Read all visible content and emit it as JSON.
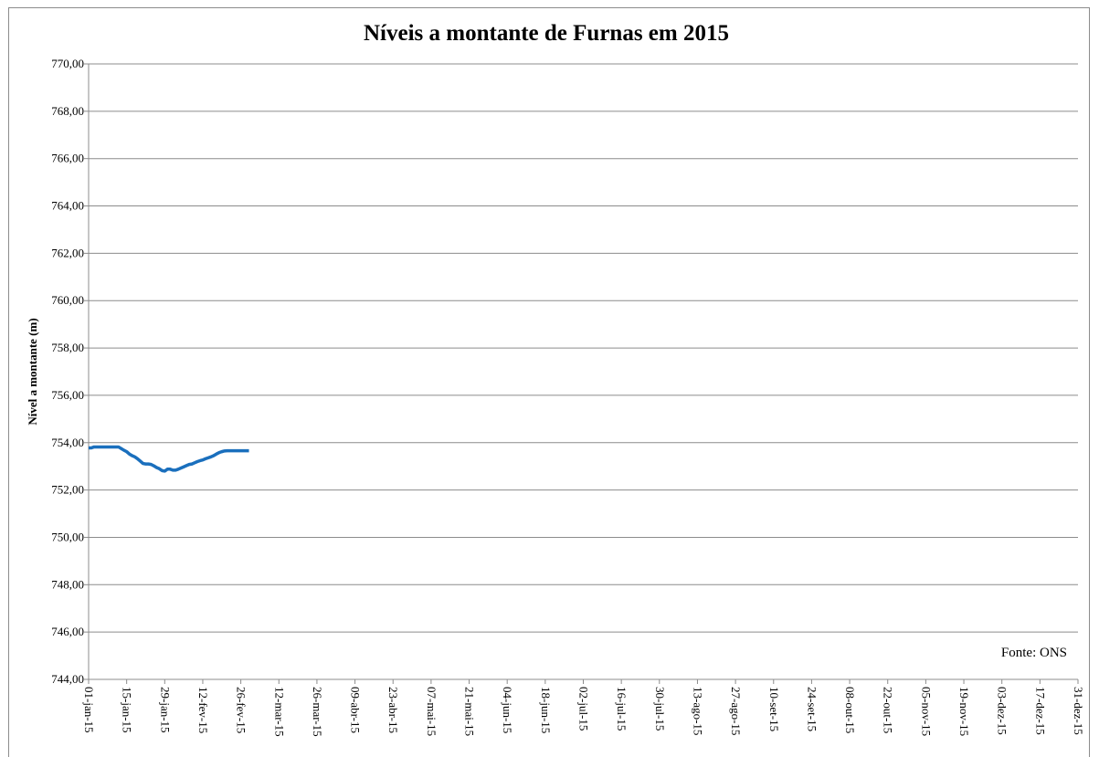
{
  "chart_data": {
    "type": "line",
    "title": "Níveis a montante de Furnas em 2015",
    "y_label": "Nível a montante (m)",
    "annotation": "Fonte: ONS",
    "x": [
      "2015-01-01",
      "2015-01-02",
      "2015-01-03",
      "2015-01-04",
      "2015-01-05",
      "2015-01-06",
      "2015-01-07",
      "2015-01-08",
      "2015-01-09",
      "2015-01-10",
      "2015-01-11",
      "2015-01-12",
      "2015-01-13",
      "2015-01-14",
      "2015-01-15",
      "2015-01-16",
      "2015-01-17",
      "2015-01-18",
      "2015-01-19",
      "2015-01-20",
      "2015-01-21",
      "2015-01-22",
      "2015-01-23",
      "2015-01-24",
      "2015-01-25",
      "2015-01-26",
      "2015-01-27",
      "2015-01-28",
      "2015-01-29",
      "2015-01-30",
      "2015-01-31",
      "2015-02-01",
      "2015-02-02",
      "2015-02-03",
      "2015-02-04",
      "2015-02-05",
      "2015-02-06",
      "2015-02-07",
      "2015-02-08",
      "2015-02-09",
      "2015-02-10",
      "2015-02-11",
      "2015-02-12",
      "2015-02-13",
      "2015-02-14",
      "2015-02-15",
      "2015-02-16",
      "2015-02-17",
      "2015-02-18",
      "2015-02-19",
      "2015-02-20",
      "2015-02-21",
      "2015-02-22",
      "2015-02-23",
      "2015-02-24",
      "2015-02-25",
      "2015-02-26",
      "2015-02-27",
      "2015-02-28",
      "2015-03-01"
    ],
    "series": [
      {
        "name": "Nível a montante",
        "color": "#1a6fbd",
        "values": [
          753.78,
          753.78,
          753.82,
          753.82,
          753.82,
          753.82,
          753.82,
          753.82,
          753.82,
          753.82,
          753.82,
          753.82,
          753.75,
          753.68,
          753.62,
          753.52,
          753.45,
          753.4,
          753.32,
          753.22,
          753.12,
          753.1,
          753.1,
          753.08,
          753.02,
          752.95,
          752.9,
          752.82,
          752.8,
          752.88,
          752.88,
          752.84,
          752.84,
          752.88,
          752.93,
          752.98,
          753.03,
          753.08,
          753.1,
          753.15,
          753.2,
          753.24,
          753.27,
          753.32,
          753.36,
          753.4,
          753.45,
          753.52,
          753.58,
          753.62,
          753.65,
          753.66,
          753.66,
          753.66,
          753.66,
          753.66,
          753.66,
          753.66,
          753.66,
          753.66
        ]
      }
    ],
    "xlim": [
      "2015-01-01",
      "2015-12-31"
    ],
    "xticks": [
      {
        "value": "2015-01-01",
        "label": "01-jan-15"
      },
      {
        "value": "2015-01-15",
        "label": "15-jan-15"
      },
      {
        "value": "2015-01-29",
        "label": "29-jan-15"
      },
      {
        "value": "2015-02-12",
        "label": "12-fev-15"
      },
      {
        "value": "2015-02-26",
        "label": "26-fev-15"
      },
      {
        "value": "2015-03-12",
        "label": "12-mar-15"
      },
      {
        "value": "2015-03-26",
        "label": "26-mar-15"
      },
      {
        "value": "2015-04-09",
        "label": "09-abr-15"
      },
      {
        "value": "2015-04-23",
        "label": "23-abr-15"
      },
      {
        "value": "2015-05-07",
        "label": "07-mai-15"
      },
      {
        "value": "2015-05-21",
        "label": "21-mai-15"
      },
      {
        "value": "2015-06-04",
        "label": "04-jun-15"
      },
      {
        "value": "2015-06-18",
        "label": "18-jun-15"
      },
      {
        "value": "2015-07-02",
        "label": "02-jul-15"
      },
      {
        "value": "2015-07-16",
        "label": "16-jul-15"
      },
      {
        "value": "2015-07-30",
        "label": "30-jul-15"
      },
      {
        "value": "2015-08-13",
        "label": "13-ago-15"
      },
      {
        "value": "2015-08-27",
        "label": "27-ago-15"
      },
      {
        "value": "2015-09-10",
        "label": "10-set-15"
      },
      {
        "value": "2015-09-24",
        "label": "24-set-15"
      },
      {
        "value": "2015-10-08",
        "label": "08-out-15"
      },
      {
        "value": "2015-10-22",
        "label": "22-out-15"
      },
      {
        "value": "2015-11-05",
        "label": "05-nov-15"
      },
      {
        "value": "2015-11-19",
        "label": "19-nov-15"
      },
      {
        "value": "2015-12-03",
        "label": "03-dez-15"
      },
      {
        "value": "2015-12-17",
        "label": "17-dez-15"
      },
      {
        "value": "2015-12-31",
        "label": "31-dez-15"
      }
    ],
    "ylim": [
      744,
      770
    ],
    "yticks": [
      {
        "value": 744,
        "label": "744,00"
      },
      {
        "value": 746,
        "label": "746,00"
      },
      {
        "value": 748,
        "label": "748,00"
      },
      {
        "value": 750,
        "label": "750,00"
      },
      {
        "value": 752,
        "label": "752,00"
      },
      {
        "value": 754,
        "label": "754,00"
      },
      {
        "value": 756,
        "label": "756,00"
      },
      {
        "value": 758,
        "label": "758,00"
      },
      {
        "value": 760,
        "label": "760,00"
      },
      {
        "value": 762,
        "label": "762,00"
      },
      {
        "value": 764,
        "label": "764,00"
      },
      {
        "value": 766,
        "label": "766,00"
      },
      {
        "value": 768,
        "label": "768,00"
      },
      {
        "value": 770,
        "label": "770,00"
      }
    ],
    "grid": true
  }
}
